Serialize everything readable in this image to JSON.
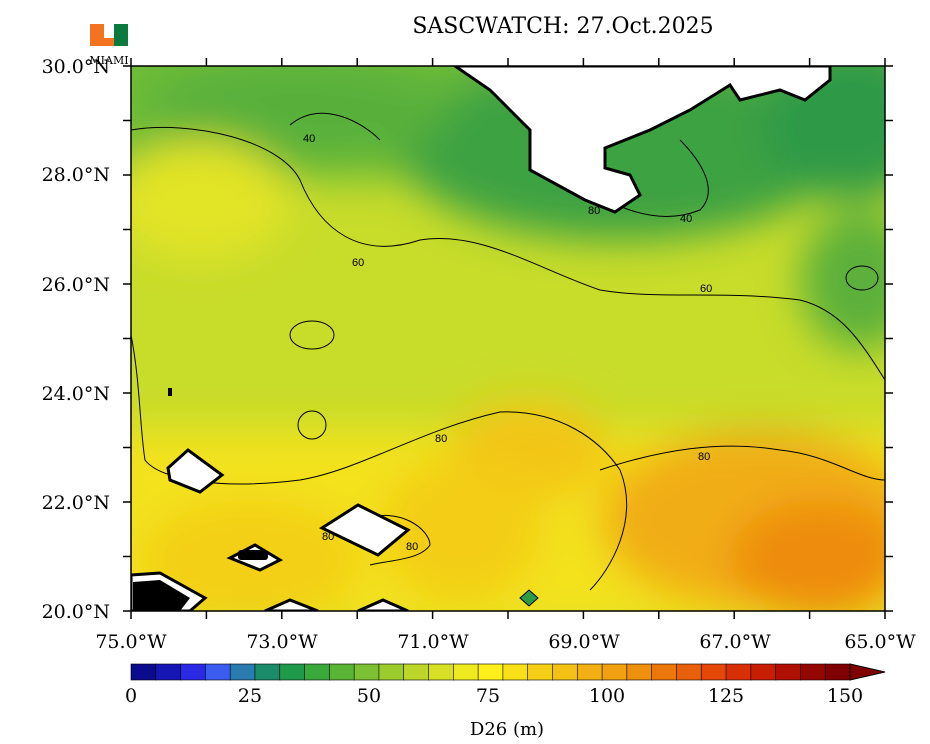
{
  "title": "SASCWATCH: 27.Oct.2025",
  "logo": {
    "text": "MIAMI",
    "icon": "u-logo-icon",
    "green": "#0b7a3e",
    "orange": "#f47321"
  },
  "axes": {
    "lat_labels": [
      "30.0°N",
      "28.0°N",
      "26.0°N",
      "24.0°N",
      "22.0°N",
      "20.0°N"
    ],
    "lon_labels": [
      "75.0°W",
      "73.0°W",
      "71.0°W",
      "69.0°W",
      "67.0°W",
      "65.0°W"
    ]
  },
  "contour_labels": [
    "40",
    "40",
    "60",
    "60",
    "80",
    "80",
    "80",
    "80",
    "80"
  ],
  "colorbar": {
    "ticks": [
      "0",
      "25",
      "50",
      "75",
      "100",
      "125",
      "150"
    ],
    "label": "D26 (m)",
    "colors": [
      "#0a0a8c",
      "#1616b4",
      "#2a2ae6",
      "#3c5cf0",
      "#2a7cb0",
      "#1a8c6a",
      "#1f9a4a",
      "#3aa83a",
      "#5bb436",
      "#7cc034",
      "#9ccb2e",
      "#bcd62a",
      "#d8e026",
      "#eeea1e",
      "#fff01a",
      "#f8e018",
      "#f6d016",
      "#f4c014",
      "#f2b012",
      "#f0a010",
      "#ee900e",
      "#ec780c",
      "#e8600a",
      "#e44808",
      "#d83006",
      "#c81e04",
      "#b01002",
      "#960600",
      "#800000"
    ]
  }
}
